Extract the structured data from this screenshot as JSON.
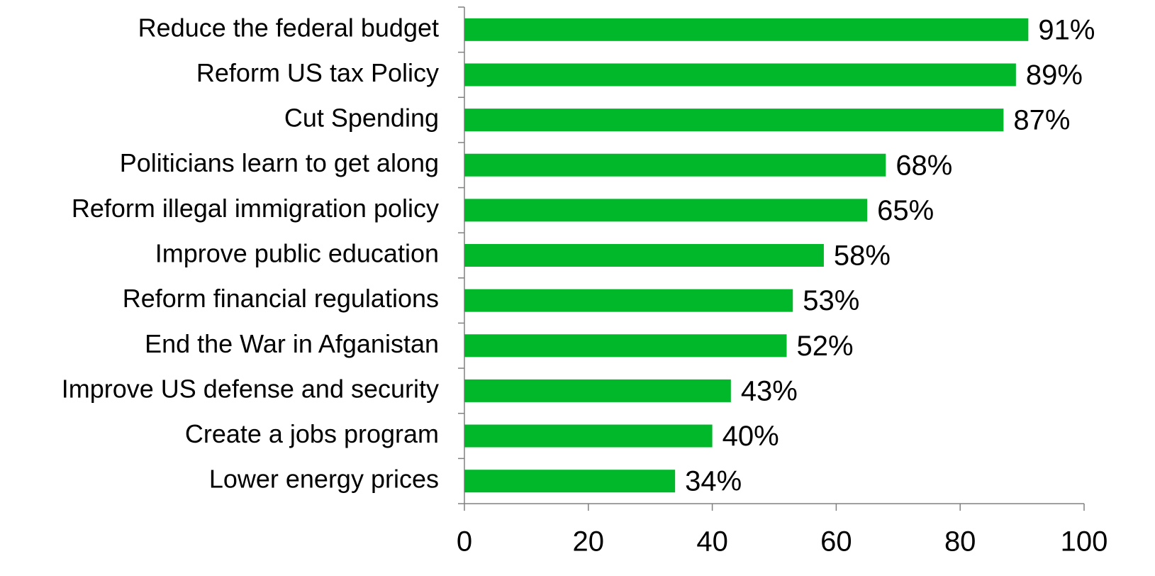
{
  "chart_data": {
    "type": "bar",
    "orientation": "horizontal",
    "categories": [
      "Reduce the federal budget",
      "Reform US tax Policy",
      "Cut Spending",
      "Politicians learn to get along",
      "Reform illegal immigration policy",
      "Improve public education",
      "Reform financial regulations",
      "End the War in Afganistan",
      "Improve US defense and security",
      "Create a jobs program",
      "Lower energy prices"
    ],
    "values": [
      91,
      89,
      87,
      68,
      65,
      58,
      53,
      52,
      43,
      40,
      34
    ],
    "value_labels": [
      "91%",
      "89%",
      "87%",
      "68%",
      "65%",
      "58%",
      "53%",
      "52%",
      "43%",
      "40%",
      "34%"
    ],
    "color": "#00b82a",
    "xlim": [
      0,
      100
    ],
    "xticks": [
      0,
      20,
      40,
      60,
      80,
      100
    ],
    "grid": false
  }
}
